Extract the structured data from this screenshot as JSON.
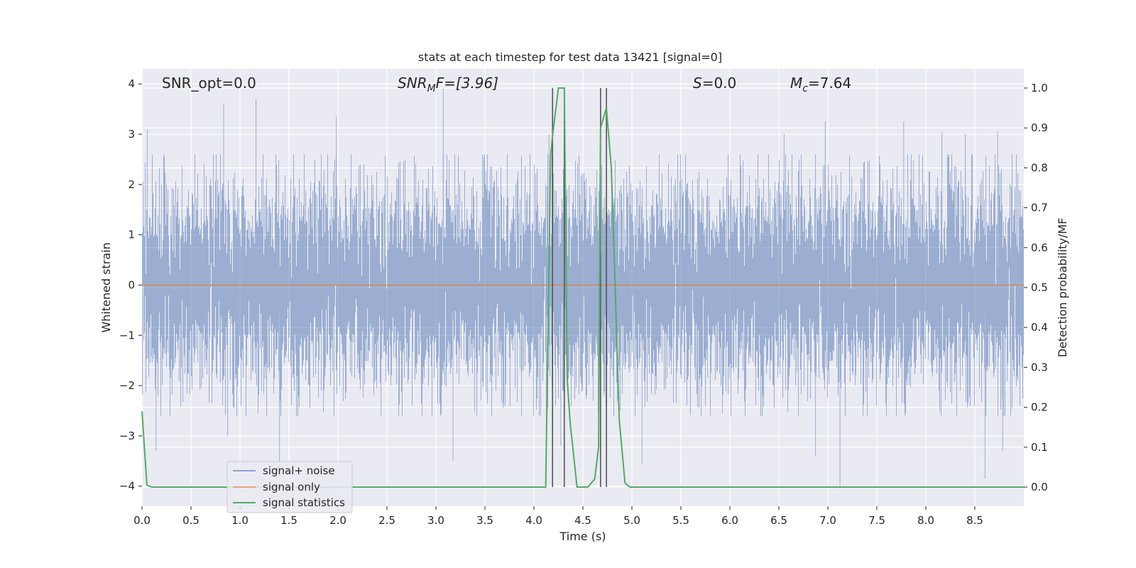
{
  "chart_data": {
    "type": "line",
    "title": "stats at each timestep for test data 13421 [signal=0]",
    "xlabel": "Time (s)",
    "ylabel_left": "Whitened strain",
    "ylabel_right": "Detection probability/MF",
    "xlim": [
      0.0,
      9.0
    ],
    "ylim_left": [
      -4.4,
      4.3
    ],
    "ylim_right": [
      -0.048,
      1.048
    ],
    "x_ticks": [
      0.0,
      0.5,
      1.0,
      1.5,
      2.0,
      2.5,
      3.0,
      3.5,
      4.0,
      4.5,
      5.0,
      5.5,
      6.0,
      6.5,
      7.0,
      7.5,
      8.0,
      8.5
    ],
    "x_tick_labels": [
      "0.0",
      "0.5",
      "1.0",
      "1.5",
      "2.0",
      "2.5",
      "3.0",
      "3.5",
      "4.0",
      "4.5",
      "5.0",
      "5.5",
      "6.0",
      "6.5",
      "7.0",
      "7.5",
      "8.0",
      "8.5"
    ],
    "y_left_ticks": [
      4,
      3,
      2,
      1,
      0,
      -1,
      -2,
      -3,
      -4
    ],
    "y_left_tick_labels": [
      "4",
      "3",
      "2",
      "1",
      "0",
      "−1",
      "−2",
      "−3",
      "−4"
    ],
    "y_right_ticks": [
      1.0,
      0.9,
      0.8,
      0.7,
      0.6,
      0.5,
      0.4,
      0.3,
      0.2,
      0.1,
      0.0
    ],
    "y_right_tick_labels": [
      "1.0",
      "0.9",
      "0.8",
      "0.7",
      "0.6",
      "0.5",
      "0.4",
      "0.3",
      "0.2",
      "0.1",
      "0.0"
    ],
    "annotations": [
      {
        "text": "SNR_opt=0.0",
        "x": 0.2
      },
      {
        "text": "SNR_MF=[3.96]",
        "main": "SNR",
        "sub": "M",
        "rest": "F=[3.96]",
        "x": 2.6
      },
      {
        "text": "S=0.0",
        "main": "S",
        "rest": "=0.0",
        "x": 5.6
      },
      {
        "text": "M_c=7.64",
        "main": "M",
        "sub": "c",
        "rest": "=7.64",
        "x": 6.6
      }
    ],
    "series": [
      {
        "name": "signal+ noise",
        "color": "#4c72b0",
        "opacity": 0.5,
        "axis": "left",
        "note": "whitened noise, approx. N(0,1), ~9 s of data; rendered as dense band",
        "peaks": [
          [
            0.05,
            3.1
          ],
          [
            0.83,
            3.6
          ],
          [
            1.16,
            3.7
          ],
          [
            1.98,
            3.35
          ],
          [
            3.07,
            3.9
          ],
          [
            4.15,
            3.0
          ],
          [
            6.55,
            3.0
          ],
          [
            6.97,
            3.25
          ],
          [
            7.77,
            3.25
          ],
          [
            8.16,
            3.05
          ],
          [
            8.4,
            3.0
          ],
          [
            8.73,
            3.05
          ]
        ],
        "troughs": [
          [
            0.14,
            -3.3
          ],
          [
            0.87,
            -3.0
          ],
          [
            1.4,
            -3.7
          ],
          [
            3.17,
            -3.5
          ],
          [
            4.27,
            -3.2
          ],
          [
            5.1,
            -3.55
          ],
          [
            6.87,
            -3.4
          ],
          [
            7.12,
            -4.05
          ],
          [
            8.6,
            -3.85
          ],
          [
            8.78,
            -3.3
          ]
        ]
      },
      {
        "name": "signal only",
        "color": "#dd8452",
        "axis": "left",
        "x": [
          0.0,
          9.0
        ],
        "values": [
          0.0,
          0.0
        ]
      },
      {
        "name": "signal statistics",
        "color": "#55a868",
        "axis": "right",
        "x": [
          0.0,
          0.05,
          0.1,
          4.12,
          4.17,
          4.19,
          4.25,
          4.31,
          4.34,
          4.37,
          4.44,
          4.55,
          4.62,
          4.66,
          4.68,
          4.74,
          4.79,
          4.83,
          4.87,
          4.93,
          4.98,
          9.0
        ],
        "values": [
          0.19,
          0.005,
          0.0,
          0.0,
          0.83,
          0.88,
          1.0,
          1.0,
          0.27,
          0.16,
          0.0,
          0.0,
          0.02,
          0.1,
          0.9,
          0.95,
          0.8,
          0.5,
          0.17,
          0.01,
          0.0,
          0.0
        ]
      }
    ],
    "vlines": {
      "color": "#555555",
      "x": [
        4.19,
        4.31,
        4.68,
        4.74
      ]
    },
    "legend": {
      "placement": "lower-left",
      "entries": [
        {
          "label": "signal+ noise",
          "color": "#8da3cf"
        },
        {
          "label": "signal only",
          "color": "#e8a27e"
        },
        {
          "label": "signal statistics",
          "color": "#55a868"
        }
      ]
    },
    "grid": true,
    "colors": {
      "background": "#eaeaf2",
      "grid": "#ffffff",
      "text": "#262626"
    }
  }
}
